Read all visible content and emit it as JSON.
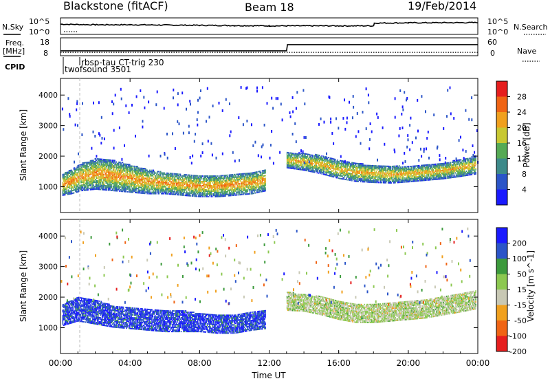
{
  "header": {
    "radar": "Blackstone (fitACF)",
    "beam": "Beam 18",
    "date": "19/Feb/2014"
  },
  "side_labels": {
    "nsky": "N.Sky",
    "nsearch": "N.Search",
    "freq_line1": "Freq.",
    "freq_line2": "[MHz]",
    "nave": "Nave",
    "cpid": "CPID"
  },
  "cpid_labels": [
    "rbsp-tau CT-trig 230",
    "twofsound 3501"
  ],
  "chart_data": [
    {
      "type": "line",
      "panel": "noise",
      "yaxis_left": {
        "ticks": [
          "10^5",
          "10^0"
        ]
      },
      "yaxis_right": {
        "ticks": [
          "10^5",
          "10^0"
        ]
      },
      "series": [
        {
          "name": "N.Sky",
          "x": [
            0,
            2,
            4,
            6,
            8,
            10,
            12,
            14,
            16,
            18,
            18.05,
            20,
            24
          ],
          "values": [
            3.2,
            3.0,
            3.0,
            2.9,
            2.8,
            2.7,
            2.6,
            2.6,
            2.6,
            2.6,
            3.6,
            3.7,
            3.8
          ]
        },
        {
          "name": "N.Search",
          "x": [
            0.2,
            1.0
          ],
          "values": [
            0.5,
            0.5
          ]
        }
      ]
    },
    {
      "type": "line",
      "panel": "freq-nave",
      "yaxis_left": {
        "ticks": [
          "18",
          "8"
        ],
        "ylim": [
          8,
          18
        ]
      },
      "yaxis_right": {
        "ticks": [
          "60",
          "0"
        ],
        "ylim": [
          0,
          60
        ]
      },
      "series": [
        {
          "name": "Freq.",
          "x": [
            0,
            13,
            13.05,
            24
          ],
          "values": [
            10.3,
            10.3,
            14.4,
            14.4
          ]
        },
        {
          "name": "Nave",
          "x": [
            0,
            24
          ],
          "values": [
            8,
            8
          ]
        }
      ]
    },
    {
      "type": "heatmap",
      "panel": "power",
      "xlabel": "",
      "ylabel": "Slant Range [km]",
      "ylim": [
        200,
        4500
      ],
      "yticks": [
        "1000",
        "2000",
        "3000",
        "4000"
      ],
      "colorbar": {
        "label": "Power [dB]",
        "ticks": [
          "4",
          "8",
          "12",
          "16",
          "20",
          "24",
          "28"
        ],
        "range": [
          0,
          32
        ]
      },
      "colors": [
        "#1a1aff",
        "#2b55c8",
        "#3d8a8a",
        "#55aa55",
        "#c8c832",
        "#f0a01e",
        "#f06414",
        "#e61e1e"
      ],
      "bands": [
        {
          "x": [
            0.1,
            0.6,
            1.2,
            2.0,
            3.0,
            4.0,
            5.0,
            6.0,
            7.0,
            8.0,
            9.0,
            10.0,
            11.0,
            11.8
          ],
          "center": [
            1050,
            1150,
            1300,
            1400,
            1350,
            1250,
            1150,
            1100,
            1050,
            1000,
            1000,
            1050,
            1100,
            1200
          ],
          "halfwidth": [
            350,
            400,
            450,
            500,
            500,
            450,
            400,
            350,
            350,
            350,
            350,
            350,
            350,
            350
          ],
          "level": 24
        },
        {
          "x": [
            13.0,
            14.0,
            15.0,
            16.0,
            17.0,
            18.0,
            19.0,
            20.0,
            21.0,
            22.0,
            23.0,
            23.9
          ],
          "center": [
            1850,
            1800,
            1700,
            1550,
            1450,
            1400,
            1380,
            1400,
            1450,
            1500,
            1600,
            1700
          ],
          "halfwidth": [
            250,
            280,
            300,
            300,
            300,
            280,
            280,
            260,
            260,
            260,
            280,
            300
          ],
          "level": 22
        }
      ]
    },
    {
      "type": "heatmap",
      "panel": "velocity",
      "xlabel": "Time UT",
      "ylabel": "Slant Range [km]",
      "ylim": [
        200,
        4500
      ],
      "yticks": [
        "1000",
        "2000",
        "3000",
        "4000"
      ],
      "xticks": [
        "00:00",
        "04:00",
        "08:00",
        "12:00",
        "16:00",
        "20:00",
        "00:00"
      ],
      "colorbar": {
        "label": "Velocity [m s^-1]",
        "ticks": [
          "200",
          "100",
          "50",
          "15",
          "-15",
          "-50",
          "-100",
          "-200"
        ],
        "range": [
          -250,
          250
        ]
      },
      "colors": [
        "#e61e1e",
        "#f06414",
        "#f0a01e",
        "#c8c8b4",
        "#8cc850",
        "#3c9a3c",
        "#2b55c8",
        "#1a1aff"
      ],
      "bands": [
        {
          "x": [
            0.1,
            1.0,
            2.0,
            3.0,
            4.0,
            5.0,
            6.0,
            7.0,
            8.0,
            9.0,
            10.0,
            11.0,
            11.8
          ],
          "center": [
            1400,
            1600,
            1500,
            1350,
            1300,
            1250,
            1200,
            1200,
            1150,
            1100,
            1100,
            1200,
            1250
          ],
          "halfwidth": [
            350,
            400,
            400,
            350,
            350,
            350,
            350,
            350,
            300,
            300,
            300,
            300,
            300
          ],
          "velocity": 180
        },
        {
          "x": [
            13.0,
            14.0,
            15.0,
            16.0,
            17.0,
            18.0,
            19.0,
            20.0,
            21.0,
            22.0,
            23.0,
            23.9
          ],
          "center": [
            1850,
            1800,
            1700,
            1550,
            1450,
            1450,
            1500,
            1550,
            1600,
            1700,
            1800,
            1900
          ],
          "halfwidth": [
            300,
            280,
            300,
            300,
            300,
            300,
            300,
            300,
            300,
            300,
            300,
            300
          ],
          "velocity": 0
        }
      ]
    }
  ]
}
